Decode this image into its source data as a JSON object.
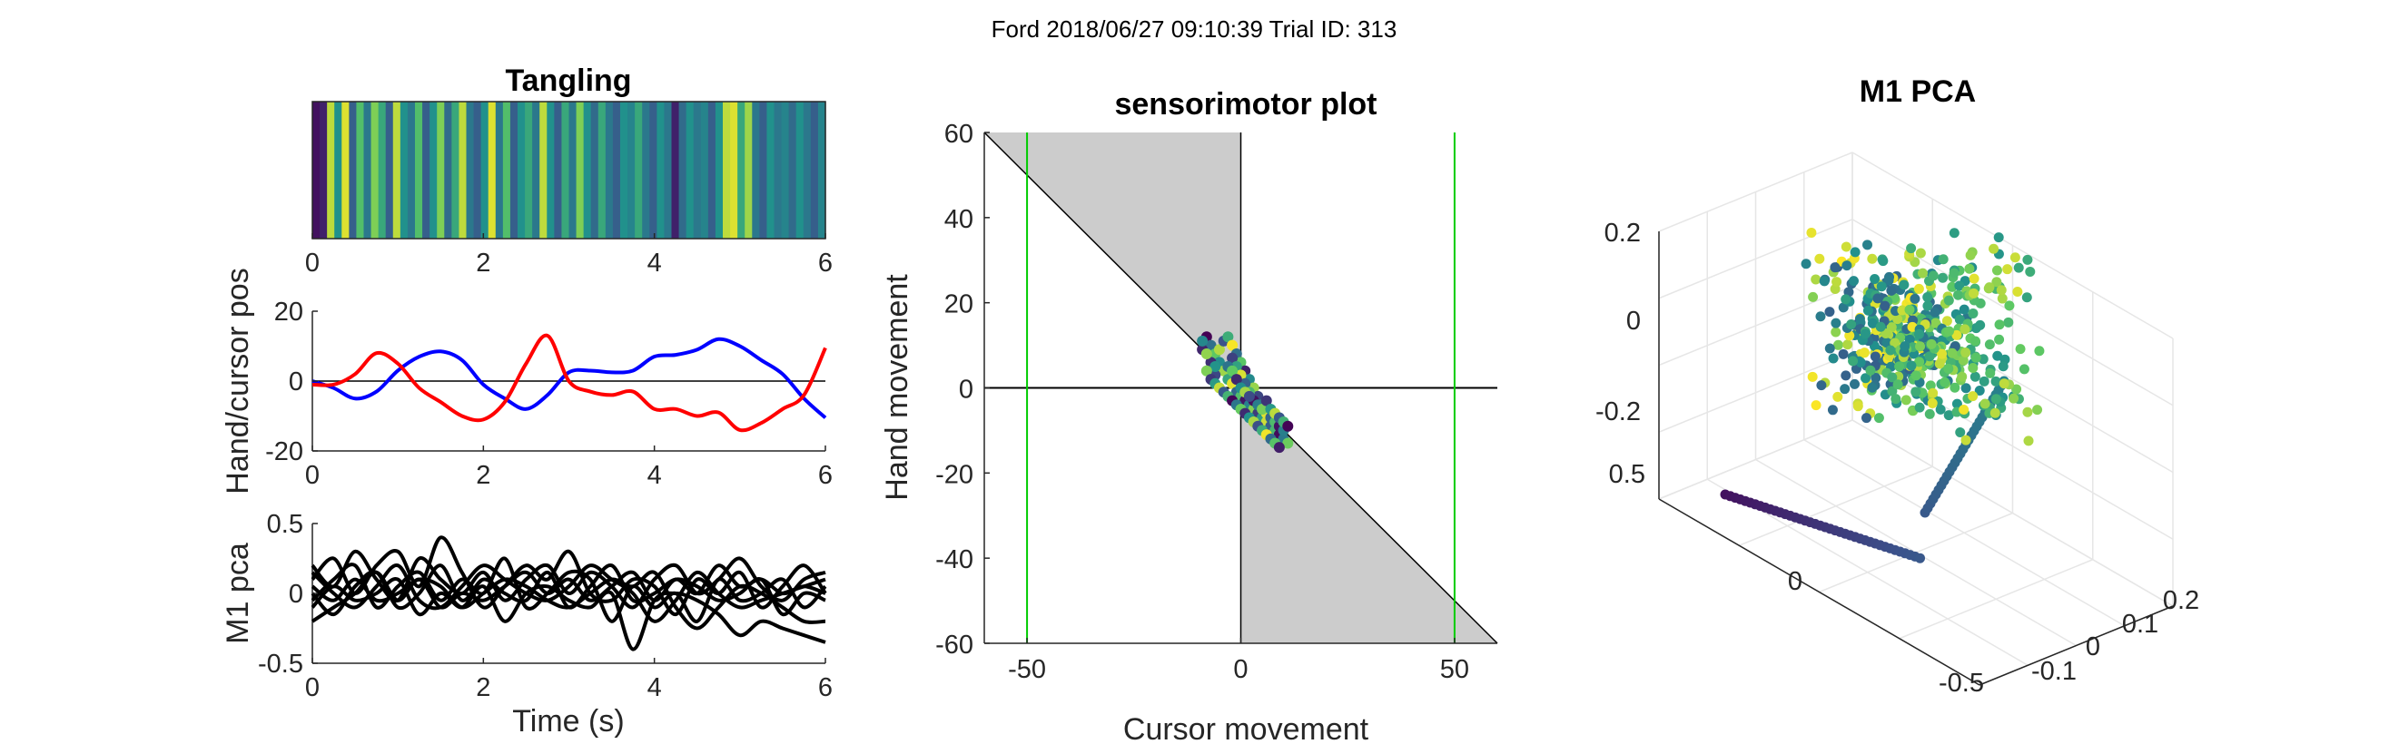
{
  "figure": {
    "suptitle": "Ford 2018/06/27 09:10:39 Trial ID: 313"
  },
  "chart_data": [
    {
      "id": "tangling",
      "type": "heatmap",
      "title": "Tangling",
      "xlabel": "",
      "ylabel": "",
      "xlim": [
        0,
        6
      ],
      "xticks": [
        "0",
        "2",
        "4",
        "6"
      ],
      "colormap": "viridis",
      "values": [
        0.05,
        0.1,
        0.9,
        0.5,
        0.95,
        0.3,
        0.7,
        0.4,
        0.8,
        0.6,
        0.3,
        0.9,
        0.5,
        0.4,
        0.7,
        0.3,
        0.5,
        0.8,
        0.35,
        0.6,
        0.9,
        0.4,
        0.3,
        0.5,
        0.95,
        0.4,
        0.7,
        0.3,
        0.5,
        0.6,
        0.4,
        0.9,
        0.5,
        0.3,
        0.6,
        0.4,
        0.8,
        0.5,
        0.35,
        0.6,
        0.4,
        0.3,
        0.5,
        0.45,
        0.6,
        0.4,
        0.3,
        0.5,
        0.4,
        0.1,
        0.35,
        0.5,
        0.4,
        0.45,
        0.3,
        0.5,
        0.9,
        0.95,
        0.6,
        0.85,
        0.4,
        0.3,
        0.5,
        0.4,
        0.45,
        0.35,
        0.5,
        0.4,
        0.3,
        0.45
      ]
    },
    {
      "id": "hand-cursor",
      "type": "line",
      "title": "",
      "xlabel": "",
      "ylabel": "Hand/cursor pos",
      "xlim": [
        0,
        6
      ],
      "ylim": [
        -20,
        20
      ],
      "xticks": [
        "0",
        "2",
        "4",
        "6"
      ],
      "yticks": [
        "20",
        "0",
        "-20"
      ],
      "x": [
        0,
        0.25,
        0.5,
        0.75,
        1,
        1.25,
        1.5,
        1.75,
        2,
        2.25,
        2.5,
        2.75,
        3,
        3.25,
        3.5,
        3.75,
        4,
        4.25,
        4.5,
        4.75,
        5,
        5.25,
        5.5,
        5.75,
        6
      ],
      "series": [
        {
          "color": "#0000ff",
          "values": [
            0,
            -2,
            -5,
            -3,
            3,
            7,
            8.5,
            6,
            -1,
            -5,
            -8,
            -4,
            2.5,
            3,
            2.5,
            3,
            7,
            7.5,
            9,
            12,
            10,
            6,
            2,
            -5,
            -10.5
          ]
        },
        {
          "color": "#ff0000",
          "values": [
            -1,
            -1,
            2,
            8,
            5,
            -2,
            -6,
            -10,
            -11,
            -6,
            5,
            13,
            0,
            -3,
            -4,
            -3,
            -8,
            -8,
            -10,
            -9,
            -14,
            -12,
            -8,
            -4,
            9.5
          ]
        }
      ],
      "zero_line": true
    },
    {
      "id": "m1-pca-time",
      "type": "line",
      "title": "",
      "xlabel": "Time (s)",
      "ylabel": "M1 pca",
      "xlim": [
        0,
        6
      ],
      "ylim": [
        -0.5,
        0.5
      ],
      "xticks": [
        "0",
        "2",
        "4",
        "6"
      ],
      "yticks": [
        "0.5",
        "0",
        "-0.5"
      ],
      "x": [
        0,
        0.25,
        0.5,
        0.75,
        1,
        1.25,
        1.5,
        1.75,
        2,
        2.25,
        2.5,
        2.75,
        3,
        3.25,
        3.5,
        3.75,
        4,
        4.25,
        4.5,
        4.75,
        5,
        5.25,
        5.5,
        5.75,
        6
      ],
      "series": [
        {
          "color": "#000000",
          "values": [
            0.2,
            0.05,
            0.3,
            0.1,
            -0.05,
            0.25,
            0.1,
            0.0,
            0.15,
            -0.05,
            0.1,
            0.2,
            0.0,
            0.15,
            0.05,
            -0.1,
            0.1,
            0.2,
            0.0,
            0.1,
            0.25,
            0.05,
            -0.05,
            0.1,
            0.15
          ]
        },
        {
          "color": "#000000",
          "values": [
            0.1,
            0.25,
            0.0,
            0.2,
            0.3,
            0.05,
            0.4,
            0.15,
            -0.1,
            0.05,
            0.2,
            0.1,
            0.3,
            0.0,
            -0.05,
            0.1,
            0.05,
            -0.15,
            0.1,
            0.0,
            0.15,
            -0.1,
            0.05,
            0.2,
            0.0
          ]
        },
        {
          "color": "#000000",
          "values": [
            -0.05,
            0.1,
            0.2,
            -0.1,
            0.05,
            0.15,
            -0.05,
            0.1,
            0.0,
            0.25,
            -0.1,
            0.0,
            0.15,
            0.1,
            -0.2,
            0.05,
            -0.1,
            0.0,
            -0.2,
            0.1,
            -0.05,
            0.0,
            0.1,
            -0.1,
            0.05
          ]
        },
        {
          "color": "#000000",
          "values": [
            0.0,
            -0.15,
            0.05,
            0.15,
            -0.1,
            0.0,
            0.2,
            -0.05,
            0.1,
            0.0,
            -0.05,
            0.15,
            -0.1,
            0.05,
            0.2,
            -0.05,
            0.0,
            0.1,
            0.05,
            -0.05,
            0.0,
            0.1,
            -0.15,
            0.0,
            -0.05
          ]
        },
        {
          "color": "#000000",
          "values": [
            0.15,
            0.0,
            -0.1,
            0.05,
            0.2,
            -0.05,
            -0.1,
            0.05,
            0.2,
            0.1,
            0.0,
            -0.05,
            0.05,
            0.2,
            0.1,
            0.0,
            -0.2,
            -0.05,
            0.15,
            0.0,
            -0.1,
            -0.05,
            0.0,
            0.05,
            0.1
          ]
        },
        {
          "color": "#000000",
          "values": [
            -0.1,
            0.05,
            -0.05,
            0.0,
            0.1,
            -0.15,
            0.0,
            -0.1,
            0.05,
            -0.2,
            0.0,
            0.05,
            -0.05,
            -0.1,
            0.0,
            -0.4,
            -0.05,
            0.0,
            -0.05,
            -0.15,
            -0.3,
            -0.2,
            -0.25,
            -0.3,
            -0.35
          ]
        },
        {
          "color": "#000000",
          "values": [
            0.05,
            -0.05,
            0.1,
            -0.05,
            0.0,
            0.1,
            0.05,
            -0.1,
            0.0,
            0.1,
            0.05,
            -0.05,
            -0.1,
            0.0,
            0.1,
            0.05,
            0.15,
            -0.1,
            -0.25,
            -0.1,
            0.05,
            0.0,
            -0.1,
            -0.2,
            -0.2
          ]
        },
        {
          "color": "#000000",
          "values": [
            -0.2,
            -0.1,
            0.0,
            0.15,
            -0.05,
            0.1,
            -0.1,
            0.0,
            -0.05,
            0.05,
            0.15,
            0.0,
            0.1,
            -0.05,
            0.05,
            0.15,
            -0.05,
            0.1,
            0.0,
            0.2,
            0.05,
            0.1,
            0.0,
            0.05,
            0.0
          ]
        }
      ]
    },
    {
      "id": "sensorimotor",
      "type": "scatter",
      "title": "sensorimotor plot",
      "xlabel": "Cursor movement",
      "ylabel": "Hand movement",
      "xlim": [
        -60,
        60
      ],
      "ylim": [
        -60,
        60
      ],
      "xticks": [
        "-50",
        "0",
        "50"
      ],
      "yticks": [
        "60",
        "40",
        "20",
        "0",
        "-20",
        "-40",
        "-60"
      ],
      "vlines": [
        -50,
        50
      ],
      "vline_color": "#00cc00",
      "shaded_region_color": "#cccccc",
      "diagonal": "y = -x",
      "points": [
        [
          -8,
          12
        ],
        [
          -7,
          10
        ],
        [
          -6,
          8
        ],
        [
          -9,
          9
        ],
        [
          -5,
          6
        ],
        [
          -4,
          4
        ],
        [
          -6,
          3
        ],
        [
          -3,
          2
        ],
        [
          -2,
          1
        ],
        [
          -1,
          -1
        ],
        [
          0,
          -2
        ],
        [
          1,
          -3
        ],
        [
          2,
          -4
        ],
        [
          3,
          -5
        ],
        [
          4,
          -6
        ],
        [
          5,
          -7
        ],
        [
          6,
          -8
        ],
        [
          7,
          -9
        ],
        [
          8,
          -10
        ],
        [
          9,
          -11
        ],
        [
          10,
          -12
        ],
        [
          11,
          -13
        ],
        [
          -7,
          6
        ],
        [
          -6,
          5
        ],
        [
          -5,
          9
        ],
        [
          -4,
          11
        ],
        [
          -3,
          12
        ],
        [
          -2,
          10
        ],
        [
          -1,
          8
        ],
        [
          0,
          6
        ],
        [
          1,
          4
        ],
        [
          2,
          2
        ],
        [
          3,
          0
        ],
        [
          4,
          -2
        ],
        [
          5,
          -4
        ],
        [
          6,
          -6
        ],
        [
          7,
          -7
        ],
        [
          8,
          -8
        ],
        [
          9,
          -9
        ],
        [
          10,
          -10
        ],
        [
          -8,
          4
        ],
        [
          -7,
          2
        ],
        [
          -6,
          1
        ],
        [
          -5,
          0
        ],
        [
          -4,
          -1
        ],
        [
          -3,
          -2
        ],
        [
          -2,
          -3
        ],
        [
          -1,
          -4
        ],
        [
          0,
          -5
        ],
        [
          1,
          -6
        ],
        [
          2,
          -7
        ],
        [
          3,
          -8
        ],
        [
          4,
          -9
        ],
        [
          5,
          -10
        ],
        [
          6,
          -11
        ],
        [
          7,
          -12
        ],
        [
          8,
          -13
        ],
        [
          9,
          -14
        ],
        [
          -9,
          11
        ],
        [
          -8,
          8
        ],
        [
          -2,
          7
        ],
        [
          -1,
          5
        ],
        [
          0,
          3
        ],
        [
          1,
          1
        ],
        [
          2,
          -1
        ],
        [
          3,
          -3
        ],
        [
          4,
          -4
        ],
        [
          5,
          -5
        ],
        [
          6,
          -3
        ],
        [
          7,
          -5
        ],
        [
          8,
          -6
        ],
        [
          9,
          -7
        ],
        [
          10,
          -8
        ],
        [
          11,
          -9
        ],
        [
          -3,
          5
        ],
        [
          -2,
          4
        ],
        [
          -1,
          2
        ],
        [
          0,
          0
        ],
        [
          1,
          -1
        ],
        [
          2,
          -2
        ]
      ]
    },
    {
      "id": "m1-pca-3d",
      "type": "scatter",
      "title": "M1 PCA",
      "ticks_left": [
        "0.2",
        "0",
        "-0.2"
      ],
      "ticks_depth": [
        "0.5",
        "0",
        "-0.5"
      ],
      "ticks_bottom": [
        "-0.1",
        "0",
        "0.1",
        "0.2"
      ]
    }
  ]
}
